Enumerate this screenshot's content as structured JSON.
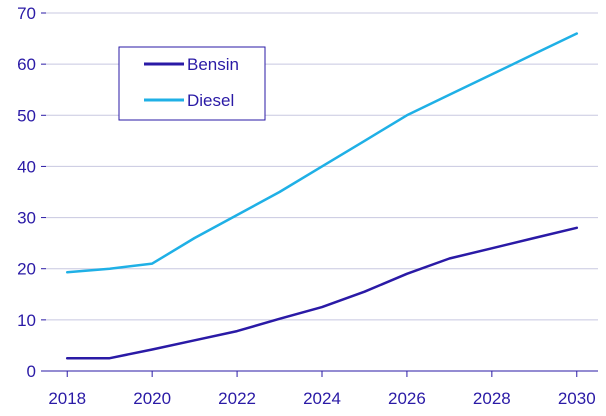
{
  "chart_data": {
    "type": "line",
    "title": "",
    "xlabel": "",
    "ylabel": "",
    "x": [
      2018,
      2019,
      2020,
      2021,
      2022,
      2023,
      2024,
      2025,
      2026,
      2027,
      2028,
      2029,
      2030
    ],
    "x_ticks": [
      "2018",
      "2020",
      "2022",
      "2024",
      "2026",
      "2028",
      "2030"
    ],
    "y_ticks": [
      "0",
      "10",
      "20",
      "30",
      "40",
      "50",
      "60",
      "70"
    ],
    "xlim": [
      2017.5,
      2030.5
    ],
    "ylim": [
      0,
      70
    ],
    "grid": "horizontal",
    "legend_position": "top-left",
    "series": [
      {
        "name": "Bensin",
        "color": "#2a1aa6",
        "values": [
          2.5,
          2.5,
          4.2,
          6.0,
          7.8,
          10.2,
          12.5,
          15.5,
          19.0,
          22.0,
          24.0,
          26.0,
          28.0
        ]
      },
      {
        "name": "Diesel",
        "color": "#1fb0e6",
        "values": [
          19.3,
          20.0,
          21.0,
          26.0,
          30.5,
          35.0,
          40.0,
          45.0,
          50.0,
          54.0,
          58.0,
          62.0,
          66.0
        ]
      }
    ],
    "colors": {
      "axis": "#2a1aa6",
      "grid": "#c8c8e0",
      "text": "#2a1aa6"
    }
  }
}
